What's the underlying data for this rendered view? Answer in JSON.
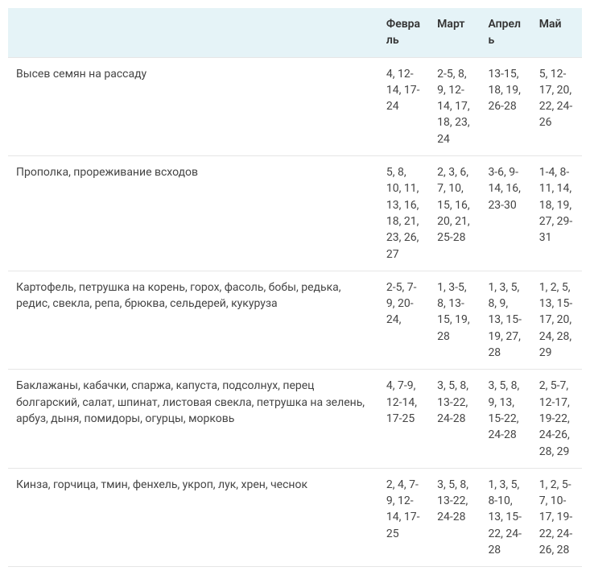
{
  "table": {
    "columns": [
      "",
      "Февраль",
      "Март",
      "Апрель",
      "Май"
    ],
    "col_widths_pct": [
      64.5,
      8.875,
      8.875,
      8.875,
      8.875
    ],
    "header_bg": "#e5f3f7",
    "border_color": "#e6e6e6",
    "text_color": "#444444",
    "font_size_pt": 11,
    "rows": [
      {
        "task": "Высев семян на рассаду",
        "feb": "4, 12-14, 17-24",
        "mar": "2-5, 8, 9, 12-14, 17, 18, 23, 24",
        "apr": "13-15, 18, 19, 26-28",
        "may": "5, 12-17, 20, 22, 24-26"
      },
      {
        "task": "Прополка, прореживание всходов",
        "feb": "5, 8, 10, 11, 13, 16, 18, 21, 23, 26, 27",
        "mar": "2, 3, 6, 7, 10, 15, 16, 20, 21, 25-28",
        "apr": "3-6, 9-14, 16, 23-30",
        "may": "1-4, 8-11, 14, 18, 19, 27, 29-31"
      },
      {
        "task": "Картофель, петрушка на корень, горох, фасоль, бобы, редька, редис, свекла, репа, брюква, сельдерей, кукуруза",
        "feb": "2-5, 7-9, 20-24,",
        "mar": "1, 3-5, 8, 13-15, 19, 28",
        "apr": "1, 3, 5, 8, 9, 13, 15-19, 27, 28",
        "may": "1, 2, 5, 13, 15-17, 20, 24, 28, 29"
      },
      {
        "task": "Баклажаны, кабачки, спаржа, капуста, подсолнух, перец болгарский, салат, шпинат, листовая свекла, петрушка на зелень, арбуз, дыня, помидоры, огурцы, морковь",
        "feb": "4, 7-9, 12-14, 17-25",
        "mar": "3, 5, 8, 13-22, 24-28",
        "apr": "3, 5, 8, 9, 13, 15-22, 24-28",
        "may": "2, 5-7, 12-17, 19-22, 24-26, 28, 29"
      },
      {
        "task": "Кинза, горчица, тмин, фенхель, укроп, лук, хрен, чеснок",
        "feb": "2, 4, 7-9, 12-14, 17-25",
        "mar": "3, 5, 8, 13-22, 24-28",
        "apr": "1, 3, 5, 8-10, 13, 15-22, 24-28",
        "may": "1, 2, 5-7, 10-17, 19-22, 24-26, 28"
      }
    ]
  }
}
